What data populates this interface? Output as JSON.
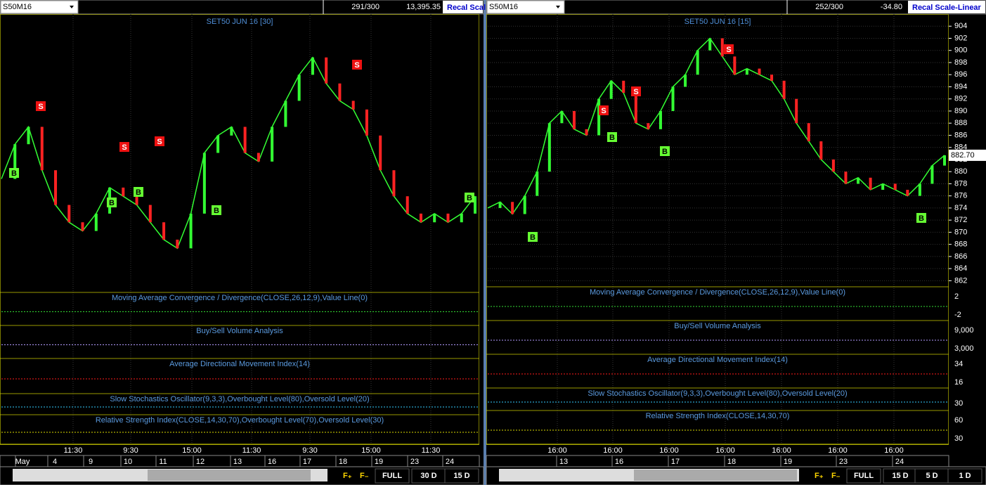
{
  "panels": [
    {
      "symbol": "S50M16",
      "bars": "291/300",
      "change": "13,395.35",
      "scale_button": "Recal Scale",
      "title": "SET50 JUN 16  [30]",
      "close": [
        884,
        888,
        890,
        885,
        881,
        879,
        878,
        880,
        883,
        882,
        881,
        879,
        877,
        876,
        880,
        887,
        889,
        890,
        887,
        886,
        890,
        893,
        896,
        898,
        895,
        893,
        892,
        889,
        885,
        882,
        880,
        879,
        880,
        879,
        880,
        882
      ],
      "signals": [
        "B",
        "S",
        "B",
        "S",
        "B",
        "S",
        "B",
        "S",
        "B"
      ],
      "indicators": [
        {
          "title": "Moving Average Convergence / Divergence(CLOSE,26,12,9),Value Line(0)",
          "ticks": []
        },
        {
          "title": "Buy/Sell Volume Analysis",
          "ticks": []
        },
        {
          "title": "Average Directional Movement Index(14)",
          "ticks": []
        },
        {
          "title": "Slow Stochastics Oscillator(9,3,3),Overbought Level(80),Oversold Level(20)",
          "ticks": []
        },
        {
          "title": "Relative Strength Index(CLOSE,14,30,70),Overbought Level(70),Oversold Level(30)",
          "ticks": []
        }
      ],
      "times": [
        "11:30",
        "9:30",
        "15:00",
        "11:30",
        "9:30",
        "15:00",
        "11:30"
      ],
      "dates": [
        "May",
        "4",
        "9",
        "10",
        "11",
        "12",
        "13",
        "16",
        "17",
        "18",
        "19",
        "23",
        "24"
      ],
      "footer": [
        "FULL",
        "30 D",
        "15 D"
      ]
    },
    {
      "symbol": "S50M16",
      "bars": "252/300",
      "change": "-34.80",
      "scale_button": "Recal Scale-Linear",
      "title": "SET50 JUN 16  [15]",
      "close": [
        874,
        875,
        873,
        876,
        880,
        888,
        890,
        887,
        886,
        892,
        895,
        893,
        888,
        887,
        890,
        894,
        896,
        900,
        902,
        899,
        896,
        897,
        896,
        895,
        892,
        888,
        885,
        882,
        880,
        878,
        879,
        877,
        878,
        877,
        876,
        878,
        881,
        882.7
      ],
      "ylim": [
        861,
        906
      ],
      "yticks": [
        862,
        864,
        866,
        868,
        870,
        872,
        874,
        876,
        878,
        880,
        882,
        884,
        886,
        888,
        890,
        892,
        894,
        896,
        898,
        900,
        902,
        904
      ],
      "last": "882.70",
      "signals": [
        "B",
        "S",
        "B",
        "S",
        "B",
        "S",
        "B"
      ],
      "indicators": [
        {
          "title": "Moving Average Convergence / Divergence(CLOSE,26,12,9),Value Line(0)",
          "ticks": [
            "2",
            "-2"
          ]
        },
        {
          "title": "Buy/Sell Volume Analysis",
          "ticks": [
            "9,000",
            "3,000"
          ]
        },
        {
          "title": "Average Directional Movement Index(14)",
          "ticks": [
            "34",
            "16"
          ]
        },
        {
          "title": "Slow Stochastics Oscillator(9,3,3),Overbought Level(80),Oversold Level(20)",
          "ticks": [
            "30"
          ]
        },
        {
          "title": "Relative Strength Index(CLOSE,14,30,70)",
          "ticks": [
            "60",
            "30"
          ]
        }
      ],
      "times": [
        "16:00",
        "16:00",
        "16:00",
        "16:00",
        "16:00",
        "16:00",
        "16:00"
      ],
      "dates": [
        "13",
        "16",
        "17",
        "18",
        "19",
        "23",
        "24"
      ],
      "footer": [
        "FULL",
        "15 D",
        "5 D",
        "1 D"
      ]
    }
  ]
}
